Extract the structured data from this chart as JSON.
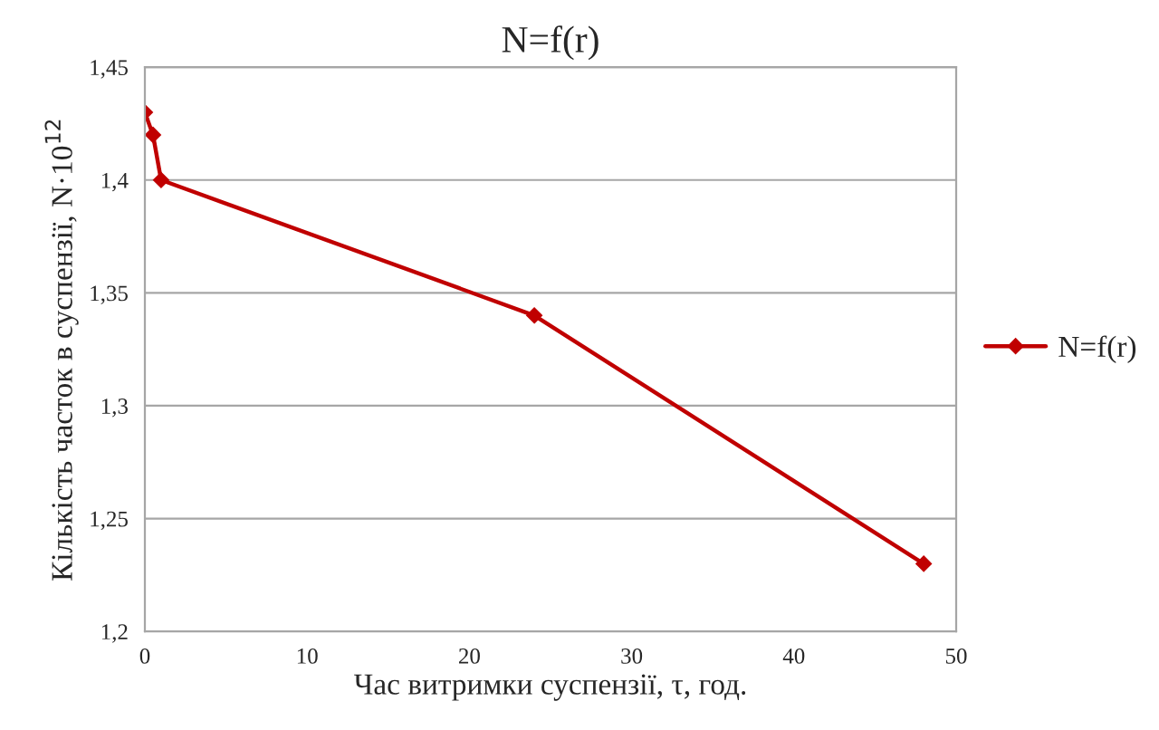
{
  "chart_data": {
    "type": "line",
    "title": "N=f(r)",
    "xlabel": "Час витримки суспензії, τ, год.",
    "ylabel": "Кількість часток в суспензії, N·10$^{12}$",
    "x": [
      0,
      0.5,
      1,
      24,
      48
    ],
    "series": [
      {
        "name": "N=f(r)",
        "color": "#c00000",
        "values": [
          1.43,
          1.42,
          1.4,
          1.34,
          1.23
        ]
      }
    ],
    "xlim": [
      0,
      50
    ],
    "xticks": [
      0,
      10,
      20,
      30,
      40,
      50
    ],
    "ylim": [
      1.2,
      1.45
    ],
    "yticks": [
      {
        "value": 1.2,
        "label": "1,2"
      },
      {
        "value": 1.25,
        "label": "1,25"
      },
      {
        "value": 1.3,
        "label": "1,3"
      },
      {
        "value": 1.35,
        "label": "1,35"
      },
      {
        "value": 1.4,
        "label": "1,4"
      },
      {
        "value": 1.45,
        "label": "1,45"
      }
    ],
    "grid": "y",
    "legend": "right",
    "marker": "diamond",
    "line_style": "solid"
  }
}
